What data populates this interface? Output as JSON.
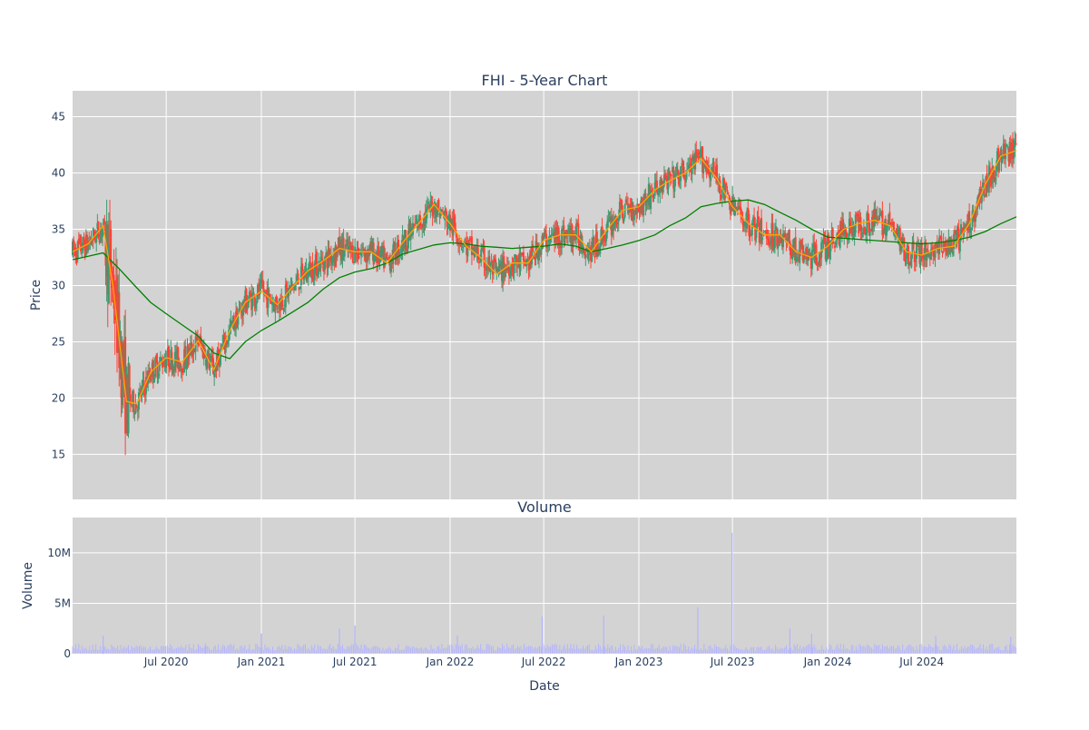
{
  "chart_data": [
    {
      "type": "candlestick",
      "title": "FHI - 5-Year Chart",
      "ylabel": "Price",
      "xlabel": "",
      "x_range": [
        "2020-01-02",
        "2024-12-31"
      ],
      "ylim": [
        11,
        47.3
      ],
      "yticks": [
        15,
        20,
        25,
        30,
        35,
        40,
        45
      ],
      "grid": true,
      "background": "#d3d3d3",
      "colors": {
        "increasing": "#3d9970",
        "decreasing": "#ff4136",
        "ma_short": "#ffa500",
        "ma_long": "#008000"
      },
      "series": [
        {
          "type": "line",
          "color": "#ffa500",
          "x": [
            "2020-01-02",
            "2020-02-01",
            "2020-03-01",
            "2020-03-20",
            "2020-04-15",
            "2020-05-05",
            "2020-06-01",
            "2020-07-01",
            "2020-08-01",
            "2020-09-01",
            "2020-10-01",
            "2020-11-01",
            "2020-12-01",
            "2021-01-01",
            "2021-02-01",
            "2021-03-01",
            "2021-04-01",
            "2021-05-01",
            "2021-06-01",
            "2021-07-01",
            "2021-08-01",
            "2021-09-01",
            "2021-10-01",
            "2021-11-01",
            "2021-12-01",
            "2022-01-01",
            "2022-02-01",
            "2022-03-01",
            "2022-04-01",
            "2022-05-01",
            "2022-06-01",
            "2022-07-01",
            "2022-08-01",
            "2022-09-01",
            "2022-10-01",
            "2022-11-01",
            "2022-12-01",
            "2023-01-01",
            "2023-02-01",
            "2023-03-01",
            "2023-04-01",
            "2023-05-01",
            "2023-06-01",
            "2023-07-01",
            "2023-08-01",
            "2023-09-01",
            "2023-10-01",
            "2023-11-01",
            "2023-12-01",
            "2024-01-01",
            "2024-02-01",
            "2024-03-01",
            "2024-04-01",
            "2024-05-01",
            "2024-06-01",
            "2024-07-01",
            "2024-08-01",
            "2024-09-01",
            "2024-10-01",
            "2024-11-01",
            "2024-12-01",
            "2024-12-31"
          ],
          "y": [
            33.0,
            33.7,
            35.3,
            30.0,
            19.7,
            19.5,
            22.3,
            23.6,
            23.2,
            25.1,
            22.5,
            26.0,
            28.5,
            29.5,
            28.3,
            29.8,
            31.3,
            32.2,
            33.3,
            33.0,
            33.0,
            32.0,
            33.8,
            35.5,
            37.2,
            35.5,
            33.5,
            32.5,
            31.0,
            32.0,
            32.0,
            34.0,
            34.5,
            34.5,
            33.0,
            35.0,
            36.7,
            37.0,
            38.5,
            39.3,
            40.0,
            41.3,
            39.5,
            37.0,
            35.5,
            34.5,
            34.5,
            33.0,
            32.5,
            33.5,
            35.0,
            35.5,
            35.8,
            35.3,
            33.0,
            32.7,
            33.3,
            33.5,
            35.5,
            39.0,
            41.5,
            42.0
          ]
        },
        {
          "type": "line",
          "color": "#008000",
          "x": [
            "2020-01-02",
            "2020-02-01",
            "2020-03-01",
            "2020-04-01",
            "2020-05-01",
            "2020-06-01",
            "2020-07-01",
            "2020-08-01",
            "2020-09-01",
            "2020-10-01",
            "2020-11-01",
            "2020-12-01",
            "2021-01-01",
            "2021-02-01",
            "2021-03-01",
            "2021-04-01",
            "2021-05-01",
            "2021-06-01",
            "2021-07-01",
            "2021-08-01",
            "2021-09-01",
            "2021-10-01",
            "2021-11-01",
            "2021-12-01",
            "2022-01-01",
            "2022-02-01",
            "2022-03-01",
            "2022-04-01",
            "2022-05-01",
            "2022-06-01",
            "2022-07-01",
            "2022-08-01",
            "2022-09-01",
            "2022-10-01",
            "2022-11-01",
            "2022-12-01",
            "2023-01-01",
            "2023-02-01",
            "2023-03-01",
            "2023-04-01",
            "2023-05-01",
            "2023-06-01",
            "2023-07-01",
            "2023-08-01",
            "2023-09-01",
            "2023-10-01",
            "2023-11-01",
            "2023-12-01",
            "2024-01-01",
            "2024-02-01",
            "2024-03-01",
            "2024-04-01",
            "2024-05-01",
            "2024-06-01",
            "2024-07-01",
            "2024-08-01",
            "2024-09-01",
            "2024-10-01",
            "2024-11-01",
            "2024-12-01",
            "2024-12-31"
          ],
          "y": [
            32.3,
            32.6,
            32.9,
            31.5,
            30.0,
            28.5,
            27.5,
            26.5,
            25.5,
            24.0,
            23.5,
            25.0,
            26.0,
            26.8,
            27.6,
            28.5,
            29.7,
            30.7,
            31.2,
            31.5,
            32.0,
            32.8,
            33.2,
            33.6,
            33.8,
            33.7,
            33.5,
            33.4,
            33.3,
            33.4,
            33.5,
            33.7,
            33.5,
            33.0,
            33.3,
            33.6,
            34.0,
            34.5,
            35.3,
            36.0,
            37.0,
            37.3,
            37.5,
            37.6,
            37.2,
            36.5,
            35.8,
            35.0,
            34.3,
            34.2,
            34.1,
            34.0,
            33.9,
            33.8,
            33.7,
            33.8,
            34.0,
            34.3,
            34.8,
            35.5,
            36.1
          ]
        }
      ]
    },
    {
      "type": "bar",
      "title": "Volume",
      "ylabel": "Volume",
      "xlabel": "Date",
      "x_range": [
        "2020-01-02",
        "2024-12-31"
      ],
      "ylim": [
        0,
        13.5
      ],
      "ytick_values": [
        0,
        5,
        10
      ],
      "ytick_labels": [
        "0",
        "5M",
        "10M"
      ],
      "xtick_dates": [
        "2020-07-01",
        "2021-01-01",
        "2021-07-01",
        "2022-01-01",
        "2022-07-01",
        "2023-01-01",
        "2023-07-01",
        "2024-01-01",
        "2024-07-01"
      ],
      "xtick_labels": [
        "Jul 2020",
        "Jan 2021",
        "Jul 2021",
        "Jan 2022",
        "Jul 2022",
        "Jan 2023",
        "Jul 2023",
        "Jan 2024",
        "Jul 2024"
      ],
      "grid": true,
      "background": "#d3d3d3",
      "color": "#b4b4ff",
      "spikes": [
        {
          "x": "2020-03-01",
          "y": 1.8
        },
        {
          "x": "2020-09-15",
          "y": 1.0
        },
        {
          "x": "2021-01-01",
          "y": 2.0
        },
        {
          "x": "2021-06-01",
          "y": 2.5
        },
        {
          "x": "2021-07-01",
          "y": 2.8
        },
        {
          "x": "2022-01-15",
          "y": 1.8
        },
        {
          "x": "2022-06-28",
          "y": 3.7
        },
        {
          "x": "2022-10-25",
          "y": 3.8
        },
        {
          "x": "2023-04-25",
          "y": 4.6
        },
        {
          "x": "2023-06-30",
          "y": 12.0
        },
        {
          "x": "2023-10-20",
          "y": 2.5
        },
        {
          "x": "2023-12-01",
          "y": 2.0
        },
        {
          "x": "2024-07-28",
          "y": 1.8
        },
        {
          "x": "2024-12-20",
          "y": 1.7
        }
      ]
    }
  ]
}
